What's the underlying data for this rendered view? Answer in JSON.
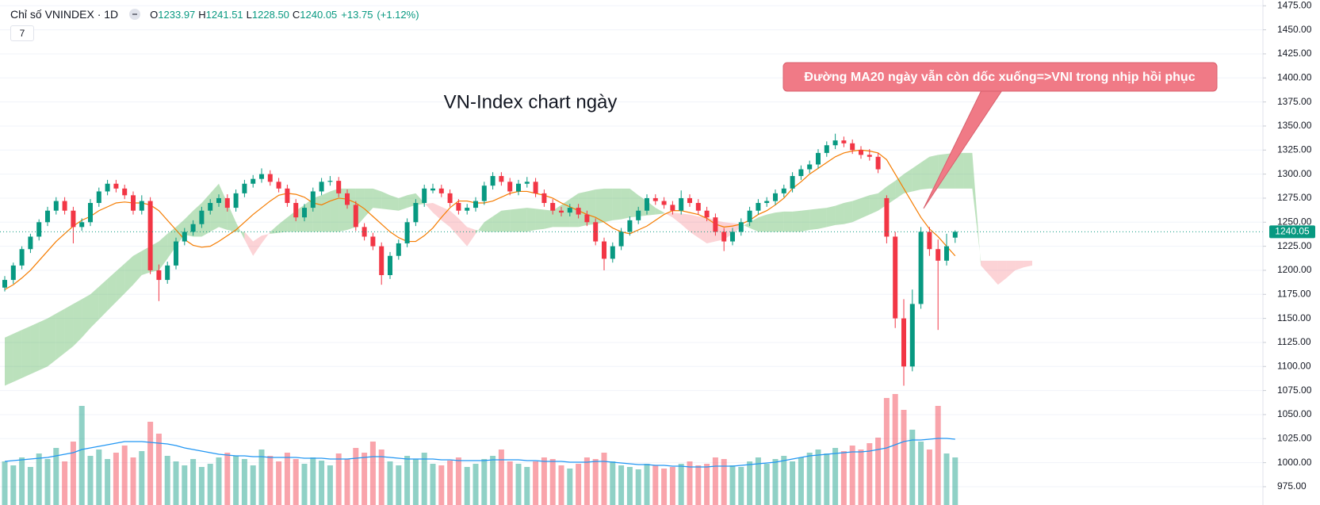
{
  "chart_data": {
    "type": "candlestick",
    "symbol": "Chỉ số VNINDEX · 1D",
    "ohlc_labels": [
      "O",
      "H",
      "L",
      "C"
    ],
    "ohlc_values": [
      1233.97,
      1241.51,
      {
        "value": 1228.5,
        "label": "1228.50"
      },
      1240.05
    ],
    "change": {
      "value": 13.75,
      "label": "+13.75"
    },
    "change_pct": {
      "value": 1.12,
      "label": "(+1.12%)"
    },
    "indicators_count": 7,
    "title": "VN-Index chart ngày",
    "annotation": "Đường MA20 ngày vẫn còn dốc xuống=>VNI trong nhịp hồi phục",
    "ylim": [
      956,
      1481
    ],
    "yticks": [
      {
        "value": 975,
        "label": "975.00"
      },
      {
        "value": 1000,
        "label": "1000.00"
      },
      {
        "value": 1025,
        "label": "1025.00"
      },
      {
        "value": 1050,
        "label": "1050.00"
      },
      {
        "value": 1075,
        "label": "1075.00"
      },
      {
        "value": 1100,
        "label": "1100.00"
      },
      {
        "value": 1125,
        "label": "1125.00"
      },
      {
        "value": 1150,
        "label": "1150.00"
      },
      {
        "value": 1175,
        "label": "1175.00"
      },
      {
        "value": 1200,
        "label": "1200.00"
      },
      {
        "value": 1225,
        "label": "1225.00"
      },
      {
        "value": 1250,
        "label": "1250.00"
      },
      {
        "value": 1275,
        "label": "1275.00"
      },
      {
        "value": 1300,
        "label": "1300.00"
      },
      {
        "value": 1325,
        "label": "1325.00"
      },
      {
        "value": 1350,
        "label": "1350.00"
      },
      {
        "value": 1375,
        "label": "1375.00"
      },
      {
        "value": 1400,
        "label": "1400.00"
      },
      {
        "value": 1425,
        "label": "1425.00"
      },
      {
        "value": 1450,
        "label": "1450.00"
      },
      {
        "value": 1475,
        "label": "1475.00"
      }
    ],
    "grid": true,
    "up_color": "#089981",
    "down_color": "#f23645",
    "candles": [
      [
        1182,
        1194,
        1178,
        1190
      ],
      [
        1190,
        1208,
        1186,
        1205
      ],
      [
        1205,
        1225,
        1201,
        1222
      ],
      [
        1222,
        1238,
        1218,
        1235
      ],
      [
        1235,
        1253,
        1231,
        1250
      ],
      [
        1250,
        1266,
        1246,
        1262
      ],
      [
        1262,
        1276,
        1258,
        1272
      ],
      [
        1272,
        1276,
        1258,
        1262
      ],
      [
        1262,
        1266,
        1228,
        1245
      ],
      [
        1245,
        1254,
        1241,
        1250
      ],
      [
        1250,
        1274,
        1246,
        1270
      ],
      [
        1270,
        1286,
        1266,
        1282
      ],
      [
        1282,
        1294,
        1278,
        1290
      ],
      [
        1290,
        1294,
        1281,
        1285
      ],
      [
        1285,
        1289,
        1274,
        1278
      ],
      [
        1278,
        1282,
        1258,
        1262
      ],
      [
        1262,
        1278,
        1258,
        1272
      ],
      [
        1272,
        1276,
        1196,
        1200
      ],
      [
        1200,
        1206,
        1168,
        1190
      ],
      [
        1190,
        1209,
        1186,
        1205
      ],
      [
        1205,
        1234,
        1201,
        1230
      ],
      [
        1230,
        1244,
        1226,
        1240
      ],
      [
        1240,
        1252,
        1236,
        1248
      ],
      [
        1248,
        1266,
        1244,
        1262
      ],
      [
        1262,
        1274,
        1258,
        1270
      ],
      [
        1270,
        1279,
        1266,
        1275
      ],
      [
        1275,
        1279,
        1261,
        1265
      ],
      [
        1265,
        1284,
        1261,
        1280
      ],
      [
        1280,
        1294,
        1276,
        1290
      ],
      [
        1290,
        1299,
        1286,
        1295
      ],
      [
        1295,
        1306,
        1291,
        1300
      ],
      [
        1300,
        1304,
        1288,
        1292
      ],
      [
        1292,
        1296,
        1281,
        1285
      ],
      [
        1285,
        1289,
        1266,
        1270
      ],
      [
        1270,
        1274,
        1251,
        1255
      ],
      [
        1255,
        1269,
        1251,
        1265
      ],
      [
        1265,
        1286,
        1261,
        1282
      ],
      [
        1282,
        1296,
        1278,
        1292
      ],
      [
        1292,
        1298,
        1288,
        1293
      ],
      [
        1293,
        1297,
        1276,
        1280
      ],
      [
        1280,
        1284,
        1264,
        1268
      ],
      [
        1268,
        1272,
        1241,
        1245
      ],
      [
        1245,
        1249,
        1231,
        1235
      ],
      [
        1235,
        1239,
        1221,
        1225
      ],
      [
        1225,
        1229,
        1185,
        1195
      ],
      [
        1195,
        1219,
        1191,
        1215
      ],
      [
        1215,
        1232,
        1211,
        1228
      ],
      [
        1228,
        1254,
        1224,
        1250
      ],
      [
        1250,
        1274,
        1246,
        1270
      ],
      [
        1270,
        1289,
        1266,
        1285
      ],
      [
        1283,
        1290,
        1280,
        1285
      ],
      [
        1285,
        1289,
        1276,
        1280
      ],
      [
        1280,
        1284,
        1266,
        1270
      ],
      [
        1270,
        1274,
        1258,
        1262
      ],
      [
        1262,
        1269,
        1258,
        1265
      ],
      [
        1265,
        1276,
        1261,
        1272
      ],
      [
        1272,
        1292,
        1268,
        1288
      ],
      [
        1288,
        1302,
        1284,
        1298
      ],
      [
        1298,
        1302,
        1288,
        1292
      ],
      [
        1292,
        1296,
        1278,
        1282
      ],
      [
        1282,
        1294,
        1278,
        1290
      ],
      [
        1290,
        1297,
        1286,
        1292
      ],
      [
        1292,
        1296,
        1276,
        1280
      ],
      [
        1280,
        1284,
        1266,
        1270
      ],
      [
        1270,
        1274,
        1258,
        1262
      ],
      [
        1262,
        1266,
        1256,
        1260
      ],
      [
        1260,
        1269,
        1256,
        1265
      ],
      [
        1265,
        1269,
        1254,
        1258
      ],
      [
        1258,
        1262,
        1246,
        1250
      ],
      [
        1250,
        1254,
        1226,
        1230
      ],
      [
        1230,
        1234,
        1200,
        1212
      ],
      [
        1212,
        1229,
        1208,
        1225
      ],
      [
        1225,
        1244,
        1221,
        1240
      ],
      [
        1240,
        1256,
        1236,
        1252
      ],
      [
        1252,
        1266,
        1248,
        1262
      ],
      [
        1262,
        1279,
        1258,
        1275
      ],
      [
        1275,
        1279,
        1268,
        1272
      ],
      [
        1272,
        1276,
        1264,
        1268
      ],
      [
        1268,
        1272,
        1258,
        1262
      ],
      [
        1262,
        1283,
        1258,
        1275
      ],
      [
        1275,
        1279,
        1266,
        1270
      ],
      [
        1270,
        1274,
        1258,
        1262
      ],
      [
        1262,
        1266,
        1251,
        1255
      ],
      [
        1255,
        1259,
        1236,
        1240
      ],
      [
        1240,
        1244,
        1220,
        1230
      ],
      [
        1230,
        1244,
        1226,
        1240
      ],
      [
        1240,
        1254,
        1236,
        1250
      ],
      [
        1250,
        1266,
        1246,
        1262
      ],
      [
        1262,
        1274,
        1258,
        1270
      ],
      [
        1270,
        1276,
        1266,
        1272
      ],
      [
        1272,
        1284,
        1268,
        1280
      ],
      [
        1280,
        1289,
        1276,
        1285
      ],
      [
        1285,
        1302,
        1281,
        1298
      ],
      [
        1298,
        1309,
        1294,
        1305
      ],
      [
        1305,
        1314,
        1301,
        1310
      ],
      [
        1310,
        1326,
        1306,
        1322
      ],
      [
        1322,
        1334,
        1318,
        1330
      ],
      [
        1330,
        1342,
        1326,
        1335
      ],
      [
        1335,
        1339,
        1328,
        1332
      ],
      [
        1332,
        1336,
        1321,
        1325
      ],
      [
        1325,
        1329,
        1316,
        1320
      ],
      [
        1320,
        1326,
        1314,
        1318
      ],
      [
        1318,
        1322,
        1301,
        1305
      ],
      [
        1275,
        1278,
        1228,
        1235
      ],
      [
        1235,
        1240,
        1140,
        1150
      ],
      [
        1150,
        1170,
        1080,
        1100
      ],
      [
        1100,
        1180,
        1095,
        1165
      ],
      [
        1165,
        1245,
        1160,
        1240
      ],
      [
        1240,
        1245,
        1215,
        1222
      ],
      [
        1222,
        1232,
        1138,
        1210
      ],
      [
        1210,
        1238,
        1205,
        1225
      ],
      [
        1233.97,
        1241.51,
        1228.5,
        1240.05
      ]
    ],
    "ma20": {
      "color": "#f57c00",
      "values": [
        1180,
        1185,
        1192,
        1200,
        1210,
        1220,
        1230,
        1238,
        1246,
        1252,
        1256,
        1262,
        1266,
        1270,
        1271,
        1270,
        1270,
        1268,
        1262,
        1252,
        1242,
        1232,
        1226,
        1224,
        1225,
        1230,
        1236,
        1242,
        1250,
        1258,
        1265,
        1272,
        1278,
        1280,
        1279,
        1276,
        1270,
        1268,
        1272,
        1275,
        1274,
        1270,
        1264,
        1256,
        1248,
        1240,
        1234,
        1230,
        1230,
        1236,
        1244,
        1255,
        1265,
        1272,
        1272,
        1270,
        1270,
        1272,
        1276,
        1280,
        1282,
        1282,
        1280,
        1278,
        1275,
        1270,
        1266,
        1262,
        1258,
        1255,
        1250,
        1244,
        1240,
        1238,
        1242,
        1246,
        1252,
        1258,
        1262,
        1262,
        1260,
        1258,
        1254,
        1248,
        1245,
        1246,
        1248,
        1252,
        1258,
        1262,
        1268,
        1275,
        1285,
        1292,
        1300,
        1306,
        1312,
        1318,
        1322,
        1324,
        1325,
        1324,
        1322,
        1315,
        1300,
        1285,
        1270,
        1255,
        1243,
        1235,
        1225,
        1215
      ]
    },
    "cloud": {
      "up_color": "rgba(76,175,80,0.38)",
      "down_color": "rgba(242,54,69,0.22)",
      "span_a": [
        1130,
        1134,
        1138,
        1142,
        1146,
        1150,
        1155,
        1160,
        1165,
        1170,
        1175,
        1183,
        1191,
        1199,
        1207,
        1215,
        1220,
        1225,
        1230,
        1238,
        1245,
        1253,
        1262,
        1270,
        1280,
        1290,
        1270,
        1250,
        1232,
        1215,
        1228,
        1240,
        1248,
        1255,
        1262,
        1268,
        1275,
        1278,
        1282,
        1285,
        1285,
        1285,
        1285,
        1285,
        1282,
        1278,
        1275,
        1278,
        1280,
        1270,
        1260,
        1252,
        1245,
        1235,
        1225,
        1238,
        1250,
        1256,
        1262,
        1263,
        1264,
        1265,
        1264,
        1263,
        1262,
        1268,
        1274,
        1280,
        1282,
        1284,
        1285,
        1285,
        1285,
        1285,
        1278,
        1272,
        1265,
        1260,
        1255,
        1248,
        1240,
        1234,
        1228,
        1230,
        1232,
        1238,
        1245,
        1250,
        1255,
        1258,
        1260,
        1261,
        1261,
        1262,
        1263,
        1264,
        1265,
        1267,
        1270,
        1272,
        1275,
        1278,
        1280,
        1287,
        1293,
        1300,
        1306,
        1312,
        1318,
        1320,
        1321,
        1322,
        1322,
        1322,
        1205,
        1195,
        1185,
        1192,
        1200,
        1203,
        1205
      ],
      "span_b": [
        1080,
        1084,
        1088,
        1092,
        1096,
        1100,
        1107,
        1114,
        1121,
        1130,
        1140,
        1149,
        1158,
        1167,
        1176,
        1185,
        1195,
        1198,
        1200,
        1212,
        1225,
        1237,
        1235,
        1235,
        1240,
        1245,
        1242,
        1240,
        1240,
        1230,
        1236,
        1238,
        1239,
        1240,
        1240,
        1240,
        1240,
        1240,
        1240,
        1240,
        1242,
        1245,
        1255,
        1265,
        1264,
        1263,
        1262,
        1265,
        1268,
        1269,
        1270,
        1266,
        1262,
        1254,
        1245,
        1242,
        1240,
        1240,
        1240,
        1240,
        1240,
        1240,
        1242,
        1243,
        1245,
        1245,
        1245,
        1245,
        1247,
        1248,
        1250,
        1252,
        1253,
        1255,
        1256,
        1257,
        1258,
        1259,
        1260,
        1259,
        1258,
        1256,
        1255,
        1252,
        1250,
        1249,
        1248,
        1244,
        1240,
        1240,
        1240,
        1240,
        1240,
        1240,
        1242,
        1243,
        1245,
        1247,
        1248,
        1250,
        1254,
        1258,
        1262,
        1268,
        1274,
        1280,
        1282,
        1284,
        1285,
        1285,
        1285,
        1285,
        1285,
        1285,
        1210,
        1210,
        1210,
        1210,
        1210,
        1210,
        1210
      ]
    },
    "volume": {
      "up_color": "rgba(8,153,129,0.45)",
      "down_color": "rgba(242,54,69,0.45)",
      "values": [
        55,
        50,
        60,
        48,
        65,
        58,
        72,
        55,
        80,
        125,
        62,
        70,
        58,
        66,
        75,
        60,
        68,
        105,
        90,
        62,
        55,
        50,
        58,
        48,
        52,
        60,
        66,
        62,
        58,
        50,
        70,
        62,
        55,
        66,
        58,
        52,
        60,
        56,
        50,
        65,
        58,
        72,
        66,
        80,
        70,
        55,
        50,
        62,
        58,
        66,
        52,
        50,
        56,
        60,
        48,
        52,
        58,
        62,
        70,
        55,
        52,
        48,
        55,
        60,
        58,
        50,
        46,
        52,
        60,
        58,
        66,
        55,
        50,
        48,
        45,
        52,
        50,
        46,
        48,
        52,
        55,
        50,
        52,
        60,
        58,
        50,
        48,
        55,
        60,
        52,
        58,
        62,
        55,
        60,
        66,
        70,
        65,
        72,
        68,
        75,
        70,
        78,
        85,
        135,
        140,
        120,
        95,
        80,
        70,
        125,
        65,
        60
      ],
      "ma": {
        "color": "#2196f3",
        "values": [
          55,
          56,
          57,
          58,
          59,
          60,
          62,
          64,
          66,
          70,
          72,
          74,
          76,
          78,
          80,
          80,
          80,
          79,
          78,
          77,
          75,
          72,
          70,
          68,
          66,
          64,
          63,
          62,
          62,
          61,
          61,
          60,
          60,
          60,
          60,
          59,
          59,
          59,
          58,
          58,
          58,
          59,
          60,
          61,
          61,
          60,
          59,
          58,
          58,
          58,
          58,
          57,
          57,
          56,
          56,
          56,
          56,
          57,
          57,
          57,
          57,
          56,
          56,
          55,
          55,
          55,
          54,
          54,
          54,
          55,
          55,
          54,
          53,
          52,
          51,
          51,
          50,
          50,
          49,
          49,
          48,
          48,
          48,
          49,
          49,
          49,
          50,
          51,
          52,
          53,
          54,
          56,
          58,
          60,
          62,
          63,
          64,
          65,
          66,
          67,
          67,
          68,
          70,
          72,
          76,
          80,
          82,
          82,
          83,
          84,
          84,
          83
        ]
      }
    }
  }
}
